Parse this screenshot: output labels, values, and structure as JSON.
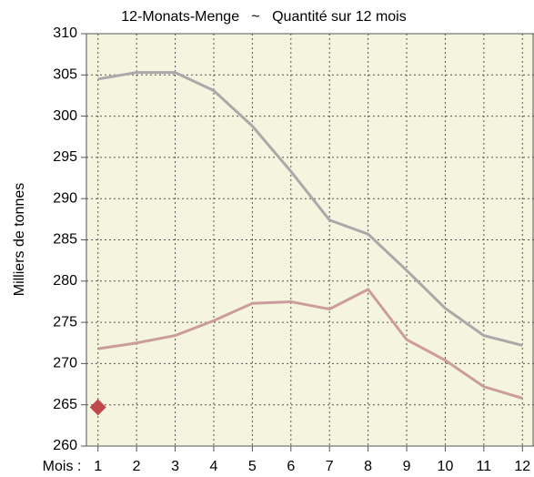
{
  "chart_data": {
    "type": "line",
    "title": "12-Monats-Menge   ~   Quantité sur 12 mois",
    "y_label": "Milliers de tonnes",
    "x_label": "Mois :",
    "x": [
      1,
      2,
      3,
      4,
      5,
      6,
      7,
      8,
      9,
      10,
      11,
      12
    ],
    "series": [
      {
        "color": "#a9a9a9",
        "values": [
          304.5,
          305.3,
          305.3,
          303.1,
          298.8,
          293.3,
          287.4,
          285.7,
          281.3,
          276.7,
          273.4,
          272.2
        ]
      },
      {
        "color": "#cc9c9c",
        "values": [
          271.8,
          272.5,
          273.4,
          275.2,
          277.3,
          277.5,
          276.6,
          279.0,
          272.9,
          270.4,
          267.2,
          265.8
        ]
      }
    ],
    "highlight": {
      "x": 1,
      "value": 264.7,
      "color": "#c0474a",
      "marker": "diamond"
    },
    "xlim": [
      0.7,
      12.3
    ],
    "xticks": [
      1,
      2,
      3,
      4,
      5,
      6,
      7,
      8,
      9,
      10,
      11,
      12
    ],
    "ylim": [
      260,
      310
    ],
    "yticks": [
      260,
      265,
      270,
      275,
      280,
      285,
      290,
      295,
      300,
      305,
      310
    ],
    "grid": true,
    "background": "#f5f5df"
  }
}
